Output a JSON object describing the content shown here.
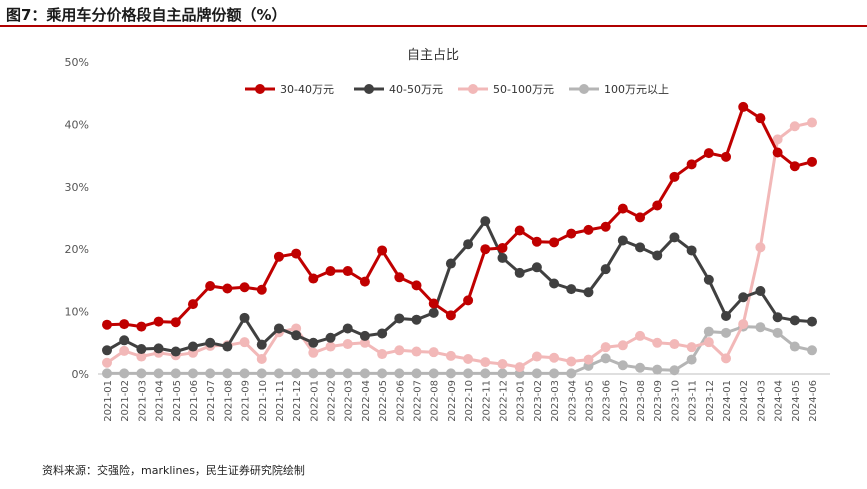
{
  "figure": {
    "title": "图7：乘用车分价格段自主品牌份额（%）",
    "source": "资料来源：交强险，marklines，民生证券研究院绘制"
  },
  "chart_data": {
    "type": "line",
    "title": "自主占比",
    "xlabel": "",
    "ylabel": "",
    "ylim": [
      0,
      50
    ],
    "yticks": [
      0,
      10,
      20,
      30,
      40,
      50
    ],
    "ytick_labels": [
      "0%",
      "10%",
      "20%",
      "30%",
      "40%",
      "50%"
    ],
    "grid": false,
    "legend_position": "top-center",
    "categories": [
      "2021-01",
      "2021-02",
      "2021-03",
      "2021-04",
      "2021-05",
      "2021-06",
      "2021-07",
      "2021-08",
      "2021-09",
      "2021-10",
      "2021-11",
      "2021-12",
      "2022-01",
      "2022-02",
      "2022-03",
      "2022-04",
      "2022-05",
      "2022-06",
      "2022-07",
      "2022-08",
      "2022-09",
      "2022-10",
      "2022-11",
      "2022-12",
      "2023-01",
      "2023-02",
      "2023-03",
      "2023-04",
      "2023-05",
      "2023-06",
      "2023-07",
      "2023-08",
      "2023-09",
      "2023-10",
      "2023-11",
      "2023-12",
      "2024-01",
      "2024-02",
      "2024-03",
      "2024-04",
      "2024-05",
      "2024-06"
    ],
    "series": [
      {
        "name": "30-40万元",
        "color": "#c00000",
        "values": [
          7.9,
          8.0,
          7.6,
          8.4,
          8.3,
          11.2,
          14.1,
          13.7,
          13.9,
          13.5,
          18.8,
          19.3,
          15.3,
          16.5,
          16.5,
          14.8,
          19.8,
          15.5,
          14.2,
          11.3,
          9.4,
          11.8,
          20.0,
          20.2,
          23.0,
          21.2,
          21.1,
          22.5,
          23.1,
          23.6,
          26.5,
          25.1,
          27.0,
          31.6,
          33.6,
          35.4,
          34.8,
          42.8,
          41.0,
          35.5,
          33.3,
          34.0
        ]
      },
      {
        "name": "40-50万元",
        "color": "#404040",
        "values": [
          3.8,
          5.4,
          4.0,
          4.1,
          3.6,
          4.4,
          5.0,
          4.4,
          9.0,
          4.7,
          7.3,
          6.2,
          5.0,
          5.8,
          7.3,
          6.1,
          6.5,
          8.9,
          8.7,
          9.8,
          17.7,
          20.8,
          24.5,
          18.6,
          16.2,
          17.1,
          14.5,
          13.6,
          13.1,
          16.8,
          21.4,
          20.3,
          19.0,
          21.9,
          19.8,
          15.1,
          9.3,
          12.3,
          13.3,
          9.1,
          8.6,
          8.4
        ]
      },
      {
        "name": "50-100万元",
        "color": "#f2b8b8",
        "values": [
          1.8,
          3.7,
          2.8,
          3.4,
          3.0,
          3.4,
          4.5,
          4.6,
          5.1,
          2.4,
          6.7,
          7.3,
          3.4,
          4.4,
          4.8,
          5.0,
          3.2,
          3.8,
          3.6,
          3.5,
          2.9,
          2.4,
          1.9,
          1.6,
          1.1,
          2.8,
          2.6,
          2.0,
          2.3,
          4.3,
          4.6,
          6.1,
          5.0,
          4.8,
          4.3,
          5.1,
          2.5,
          8.0,
          20.3,
          37.6,
          39.7,
          40.3
        ]
      },
      {
        "name": "100万元以上",
        "color": "#b5b5b5",
        "values": [
          0.1,
          0.1,
          0.1,
          0.1,
          0.1,
          0.1,
          0.1,
          0.1,
          0.1,
          0.1,
          0.1,
          0.1,
          0.1,
          0.1,
          0.1,
          0.1,
          0.1,
          0.1,
          0.1,
          0.1,
          0.1,
          0.1,
          0.1,
          0.1,
          0.1,
          0.1,
          0.1,
          0.1,
          1.3,
          2.5,
          1.4,
          1.0,
          0.7,
          0.6,
          2.3,
          6.8,
          6.6,
          7.6,
          7.5,
          6.6,
          4.4,
          3.8
        ]
      }
    ]
  }
}
